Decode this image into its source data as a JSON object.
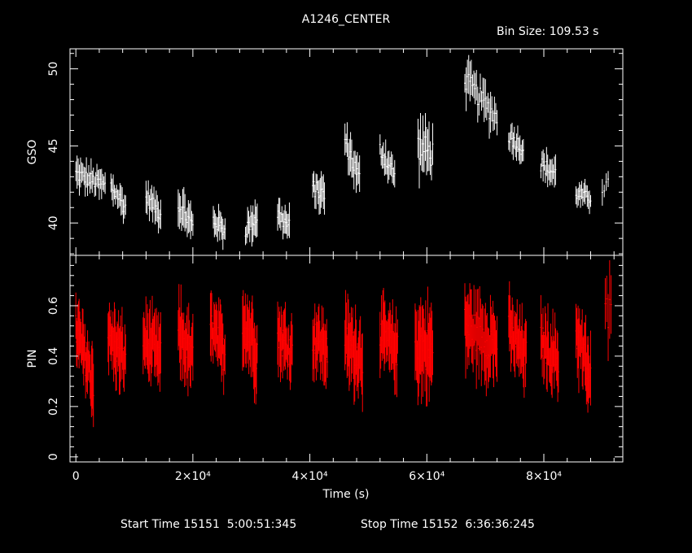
{
  "title": "A1246_CENTER",
  "bin_size_label": "Bin Size:",
  "bin_size_value": "109.53 s",
  "footer": {
    "start_label": "Start Time",
    "start_value": "15151  5:00:51:345",
    "stop_label": "Stop Time",
    "stop_value": "15152  6:36:36:245"
  },
  "colors": {
    "background": "#000000",
    "axes": "#ffffff",
    "gso": "#ffffff",
    "pin": "#ff0000"
  },
  "chart_data": [
    {
      "type": "scatter",
      "name": "GSO",
      "ylabel": "GSO",
      "xlabel": "",
      "ylim": [
        37.9,
        51.3
      ],
      "xlim": [
        -1000,
        93500
      ],
      "yticks": [
        40,
        45,
        50
      ],
      "ytick_labels": [
        "40",
        "45",
        "50"
      ],
      "error_bars": true,
      "segments": [
        {
          "x0": 0,
          "x1": 5000,
          "y0": 43.2,
          "y1": 42.4,
          "err": 0.9,
          "n": 26
        },
        {
          "x0": 6000,
          "x1": 8500,
          "y0": 42.4,
          "y1": 41.0,
          "err": 0.9,
          "n": 14
        },
        {
          "x0": 12000,
          "x1": 14500,
          "y0": 41.7,
          "y1": 40.6,
          "err": 0.9,
          "n": 14
        },
        {
          "x0": 17500,
          "x1": 20000,
          "y0": 41.2,
          "y1": 39.8,
          "err": 1.1,
          "n": 14
        },
        {
          "x0": 23500,
          "x1": 25500,
          "y0": 40.2,
          "y1": 39.5,
          "err": 0.9,
          "n": 12
        },
        {
          "x0": 29000,
          "x1": 31000,
          "y0": 39.6,
          "y1": 40.4,
          "err": 1.0,
          "n": 12
        },
        {
          "x0": 34500,
          "x1": 36500,
          "y0": 40.6,
          "y1": 39.7,
          "err": 1.0,
          "n": 12
        },
        {
          "x0": 40500,
          "x1": 42500,
          "y0": 42.3,
          "y1": 41.8,
          "err": 1.0,
          "n": 12
        },
        {
          "x0": 46000,
          "x1": 48500,
          "y0": 45.3,
          "y1": 42.8,
          "err": 1.1,
          "n": 14
        },
        {
          "x0": 52000,
          "x1": 54500,
          "y0": 44.8,
          "y1": 43.1,
          "err": 1.0,
          "n": 14
        },
        {
          "x0": 58500,
          "x1": 61000,
          "y0": 45.0,
          "y1": 44.5,
          "err": 1.6,
          "n": 13
        },
        {
          "x0": 66500,
          "x1": 72000,
          "y0": 49.3,
          "y1": 46.8,
          "err": 1.2,
          "n": 26
        },
        {
          "x0": 74000,
          "x1": 76500,
          "y0": 45.7,
          "y1": 44.8,
          "err": 0.9,
          "n": 14
        },
        {
          "x0": 79500,
          "x1": 82000,
          "y0": 43.8,
          "y1": 43.2,
          "err": 0.9,
          "n": 14
        },
        {
          "x0": 85500,
          "x1": 88000,
          "y0": 41.9,
          "y1": 41.6,
          "err": 0.7,
          "n": 14
        },
        {
          "x0": 90000,
          "x1": 91000,
          "y0": 42.3,
          "y1": 42.5,
          "err": 0.8,
          "n": 4
        }
      ]
    },
    {
      "type": "scatter",
      "name": "PIN",
      "ylabel": "PIN",
      "xlabel": "Time (s)",
      "ylim": [
        -0.02,
        0.8
      ],
      "xlim": [
        -1000,
        93500
      ],
      "yticks": [
        0,
        0.2,
        0.4,
        0.6
      ],
      "ytick_labels": [
        "0",
        "0.2",
        "0.4",
        "0.6"
      ],
      "xticks": [
        0,
        20000,
        40000,
        60000,
        80000
      ],
      "xtick_labels": [
        "0",
        "2×10⁴",
        "4×10⁴",
        "6×10⁴",
        "8×10⁴"
      ],
      "error_bars": true,
      "segments": [
        {
          "x0": 0,
          "x1": 3000,
          "y0": 0.5,
          "y1": 0.3,
          "err": 0.12,
          "n": 28
        },
        {
          "x0": 5500,
          "x1": 8500,
          "y0": 0.48,
          "y1": 0.38,
          "err": 0.12,
          "n": 26
        },
        {
          "x0": 11500,
          "x1": 14500,
          "y0": 0.47,
          "y1": 0.4,
          "err": 0.12,
          "n": 26
        },
        {
          "x0": 17500,
          "x1": 20000,
          "y0": 0.5,
          "y1": 0.38,
          "err": 0.13,
          "n": 22
        },
        {
          "x0": 23000,
          "x1": 25500,
          "y0": 0.52,
          "y1": 0.4,
          "err": 0.12,
          "n": 22
        },
        {
          "x0": 28500,
          "x1": 31000,
          "y0": 0.55,
          "y1": 0.42,
          "err": 0.14,
          "n": 22
        },
        {
          "x0": 34500,
          "x1": 37000,
          "y0": 0.48,
          "y1": 0.42,
          "err": 0.12,
          "n": 22
        },
        {
          "x0": 40500,
          "x1": 43000,
          "y0": 0.48,
          "y1": 0.42,
          "err": 0.12,
          "n": 22
        },
        {
          "x0": 46000,
          "x1": 49000,
          "y0": 0.45,
          "y1": 0.4,
          "err": 0.14,
          "n": 26
        },
        {
          "x0": 52000,
          "x1": 55000,
          "y0": 0.48,
          "y1": 0.42,
          "err": 0.12,
          "n": 26
        },
        {
          "x0": 58000,
          "x1": 61000,
          "y0": 0.45,
          "y1": 0.42,
          "err": 0.16,
          "n": 26
        },
        {
          "x0": 66500,
          "x1": 72000,
          "y0": 0.52,
          "y1": 0.45,
          "err": 0.14,
          "n": 40
        },
        {
          "x0": 74000,
          "x1": 77000,
          "y0": 0.5,
          "y1": 0.4,
          "err": 0.12,
          "n": 26
        },
        {
          "x0": 79500,
          "x1": 82500,
          "y0": 0.46,
          "y1": 0.38,
          "err": 0.12,
          "n": 26
        },
        {
          "x0": 85500,
          "x1": 88000,
          "y0": 0.5,
          "y1": 0.3,
          "err": 0.13,
          "n": 22
        },
        {
          "x0": 90500,
          "x1": 91500,
          "y0": 0.58,
          "y1": 0.55,
          "err": 0.15,
          "n": 5
        }
      ]
    }
  ]
}
